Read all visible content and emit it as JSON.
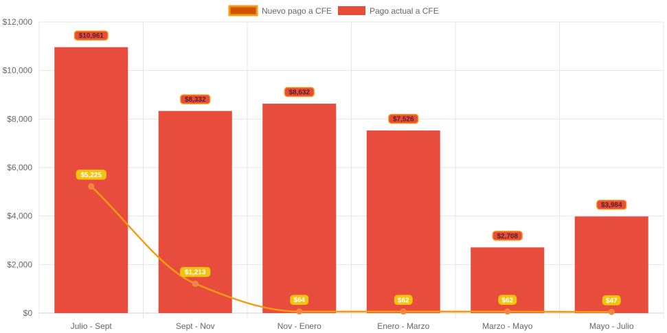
{
  "chart_data": {
    "type": "bar",
    "categories": [
      "Julio - Sept",
      "Sept - Nov",
      "Nov - Enero",
      "Enero - Marzo",
      "Marzo - Mayo",
      "Mayo - Julio"
    ],
    "series": [
      {
        "name": "Nuevo pago a CFE",
        "kind": "line",
        "color": "#f39c12",
        "point_color": "#f07f5a",
        "label_bg": "#f1c40f",
        "label_text_color": "#ffffff",
        "values": [
          5225,
          1213,
          64,
          62,
          62,
          47
        ],
        "labels": [
          "$5,225",
          "$1,213",
          "$64",
          "$62",
          "$62",
          "$47"
        ]
      },
      {
        "name": "Pago actual a CFE",
        "kind": "bar",
        "color": "#e74c3c",
        "label_bg": "#e74c3c",
        "label_border": "#f39c12",
        "label_text_color": "#5c2222",
        "values": [
          10961,
          8332,
          8632,
          7526,
          2708,
          3984
        ],
        "labels": [
          "$10,961",
          "$8,332",
          "$8,632",
          "$7,526",
          "$2,708",
          "$3,984"
        ]
      }
    ],
    "yticks": [
      "$0",
      "$2,000",
      "$4,000",
      "$6,000",
      "$8,000",
      "$10,000",
      "$12,000"
    ],
    "ylim": [
      0,
      12000
    ],
    "grid": true,
    "legend_position": "top-center"
  }
}
